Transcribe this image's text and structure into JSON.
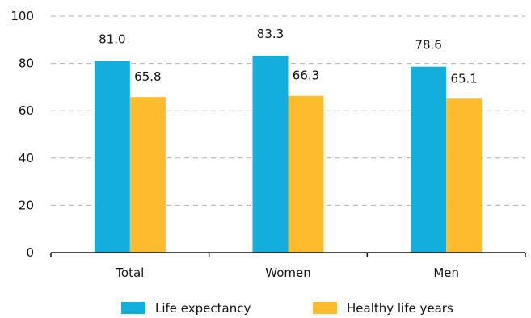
{
  "chart_data": {
    "type": "bar",
    "title": "",
    "xlabel": "",
    "ylabel": "",
    "categories": [
      "Total",
      "Women",
      "Men"
    ],
    "series": [
      {
        "name": "Life expectancy",
        "values": [
          81.0,
          83.3,
          78.6
        ],
        "labels": [
          "81.0",
          "83.3",
          "78.6"
        ],
        "color": "#13aedb"
      },
      {
        "name": "Healthy life years",
        "values": [
          65.8,
          66.3,
          65.1
        ],
        "labels": [
          "65.8",
          "66.3",
          "65.1"
        ],
        "color": "#fdbb2d"
      }
    ],
    "ylim": [
      0,
      100
    ],
    "yticks": [
      0,
      20,
      40,
      60,
      80,
      100
    ],
    "ytick_labels": [
      "0",
      "20",
      "40",
      "60",
      "80",
      "100"
    ],
    "grid": true,
    "legend_position": "bottom"
  }
}
